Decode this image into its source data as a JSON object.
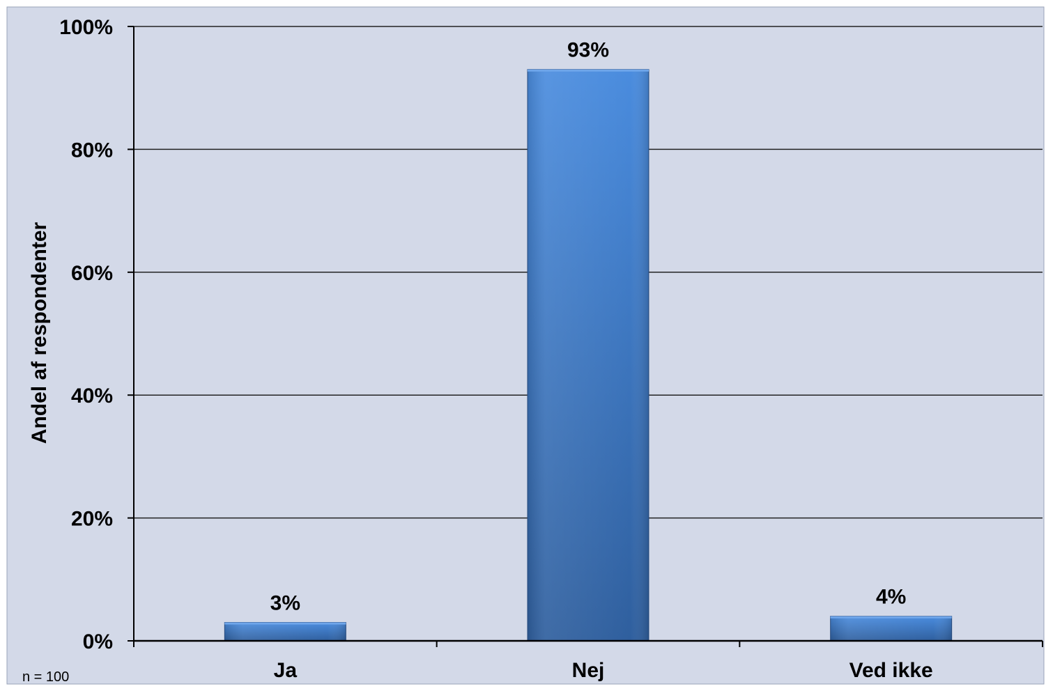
{
  "chart_data": {
    "type": "bar",
    "categories": [
      "Ja",
      "Nej",
      "Ved ikke"
    ],
    "values": [
      3,
      93,
      4
    ],
    "value_labels": [
      "3%",
      "93%",
      "4%"
    ],
    "ylabel": "Andel af respondenter",
    "ylim": [
      0,
      100
    ],
    "yticks": [
      0,
      20,
      40,
      60,
      80,
      100
    ],
    "ytick_labels": [
      "0%",
      "20%",
      "40%",
      "60%",
      "80%",
      "100%"
    ],
    "grid": true,
    "legend": "none"
  },
  "note": "n = 100",
  "colors": {
    "plot_background": "#D3D9E8",
    "bar_top": "#4A8CDE",
    "bar_bottom": "#2F5F9E",
    "gridline": "#222222"
  }
}
